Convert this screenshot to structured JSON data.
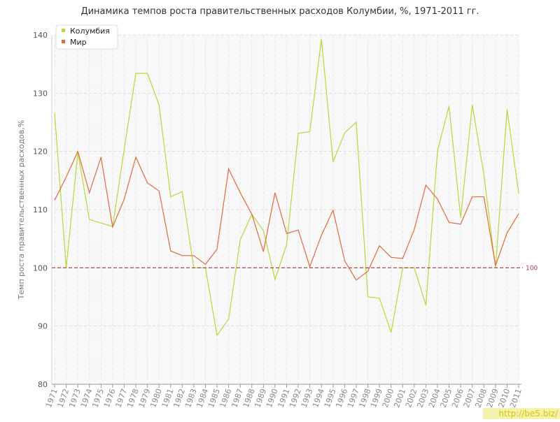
{
  "chart_data": {
    "type": "line",
    "title": "Динамика темпов роста правительственных расходов Колумбии, %, 1971-2011 гг.",
    "ylabel": "Темп роста правительственных расходов,%",
    "categories": [
      "1971",
      "1972",
      "1973",
      "1974",
      "1975",
      "1976",
      "1977",
      "1978",
      "1979",
      "1980",
      "1981",
      "1982",
      "1983",
      "1984",
      "1985",
      "1986",
      "1987",
      "1988",
      "1989",
      "1990",
      "1991",
      "1992",
      "1993",
      "1994",
      "1995",
      "1996",
      "1997",
      "1998",
      "1999",
      "2000",
      "2001",
      "2002",
      "2003",
      "2004",
      "2005",
      "2006",
      "2007",
      "2008",
      "2009",
      "2010",
      "2011"
    ],
    "series": [
      {
        "name": "Колумбия",
        "color": "#b5d936",
        "values": [
          126.6,
          100,
          119.8,
          108.3,
          107.7,
          107.1,
          120.3,
          133.4,
          133.4,
          128,
          112.2,
          113.1,
          100,
          100,
          88.4,
          91.2,
          104.8,
          109.2,
          106.4,
          98,
          104,
          123.1,
          123.4,
          139.3,
          118.2,
          123.2,
          125,
          95,
          94.8,
          88.9,
          100,
          100,
          93.6,
          120.1,
          127.8,
          108.6,
          128,
          116,
          100,
          127.2,
          112.8
        ]
      },
      {
        "name": "Мир",
        "color": "#e06a3b",
        "values": [
          111.6,
          115.6,
          120,
          112.9,
          119,
          107,
          111.8,
          119,
          114.6,
          113.2,
          102.9,
          102.1,
          102.1,
          100.6,
          103.2,
          117,
          112.9,
          109.2,
          102.8,
          112.9,
          105.9,
          106.5,
          100.2,
          105.6,
          109.9,
          101.2,
          97.9,
          99.4,
          103.8,
          101.8,
          101.6,
          106.6,
          114.2,
          111.8,
          107.8,
          107.5,
          112.2,
          112.2,
          100.4,
          106,
          109.3
        ]
      }
    ],
    "ylim": [
      80,
      140
    ],
    "yticks": [
      80,
      90,
      100,
      110,
      120,
      130,
      140
    ],
    "grid": true,
    "reference_line": {
      "value": 100,
      "color": "#a33a4a"
    },
    "legend": "top-left",
    "watermark": "http://be5.biz/"
  }
}
